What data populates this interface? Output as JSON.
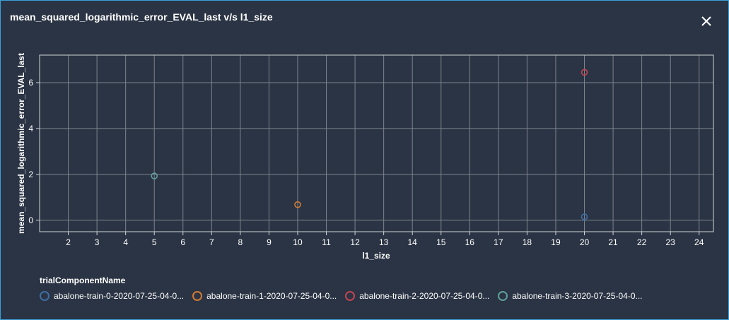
{
  "title": "mean_squared_logarithmic_error_EVAL_last v/s l1_size",
  "close_icon": "close-icon",
  "legend": {
    "title": "trialComponentName",
    "items": [
      {
        "label": "abalone-train-0-2020-07-25-04-0...",
        "color": "#3f6fa3"
      },
      {
        "label": "abalone-train-1-2020-07-25-04-0...",
        "color": "#d27a34"
      },
      {
        "label": "abalone-train-2-2020-07-25-04-0...",
        "color": "#c2454f"
      },
      {
        "label": "abalone-train-3-2020-07-25-04-0...",
        "color": "#5f9f9a"
      }
    ]
  },
  "chart_data": {
    "type": "scatter",
    "title": "mean_squared_logarithmic_error_EVAL_last v/s l1_size",
    "xlabel": "l1_size",
    "ylabel": "mean_squared_logarithmic_error_EVAL_last",
    "xlim": [
      1,
      24.5
    ],
    "ylim": [
      -0.5,
      7.2
    ],
    "xticks": [
      2,
      3,
      4,
      5,
      6,
      7,
      8,
      9,
      10,
      11,
      12,
      13,
      14,
      15,
      16,
      17,
      18,
      19,
      20,
      21,
      22,
      23,
      24
    ],
    "yticks": [
      0,
      2,
      4,
      6
    ],
    "grid": true,
    "legend_position": "bottom",
    "series": [
      {
        "name": "abalone-train-0-2020-07-25-04-0...",
        "color": "#3f6fa3",
        "points": [
          {
            "x": 20,
            "y": 0.15
          }
        ]
      },
      {
        "name": "abalone-train-1-2020-07-25-04-0...",
        "color": "#d27a34",
        "points": [
          {
            "x": 10,
            "y": 0.68
          }
        ]
      },
      {
        "name": "abalone-train-2-2020-07-25-04-0...",
        "color": "#c2454f",
        "points": [
          {
            "x": 20,
            "y": 6.45
          }
        ]
      },
      {
        "name": "abalone-train-3-2020-07-25-04-0...",
        "color": "#5f9f9a",
        "points": [
          {
            "x": 5,
            "y": 1.93
          }
        ]
      }
    ]
  }
}
